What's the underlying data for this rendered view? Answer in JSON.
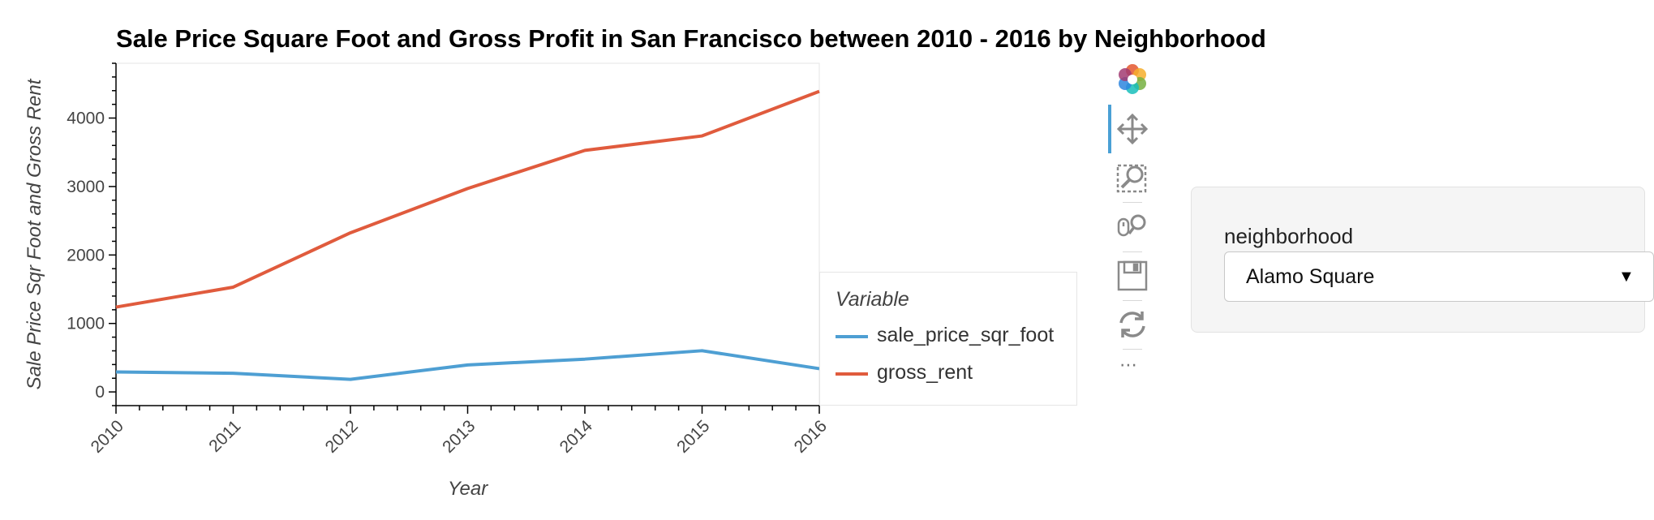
{
  "chart_data": {
    "type": "line",
    "title": "Sale Price Square Foot and Gross Profit in San Francisco between 2010 - 2016 by Neighborhood",
    "xlabel": "Year",
    "ylabel": "Sale Price Sqr Foot and Gross Rent",
    "x": [
      2010,
      2011,
      2012,
      2013,
      2014,
      2015,
      2016
    ],
    "xlim": [
      2010,
      2016
    ],
    "ylim": [
      -200,
      4800
    ],
    "yticks": [
      0,
      1000,
      2000,
      3000,
      4000
    ],
    "grid": false,
    "legend": {
      "title": "Variable",
      "placement": "right"
    },
    "series": [
      {
        "name": "sale_price_sqr_foot",
        "color": "#4e9fd3",
        "values": [
          291,
          272,
          184,
          394,
          479,
          602,
          340
        ]
      },
      {
        "name": "gross_rent",
        "color": "#e05b3d",
        "values": [
          1239,
          1530,
          2324,
          2971,
          3528,
          3739,
          4390
        ]
      }
    ]
  },
  "toolbar": {
    "icons": [
      "bokeh-logo-icon",
      "pan-icon",
      "box-zoom-icon",
      "wheel-zoom-icon",
      "save-icon",
      "reset-icon"
    ],
    "more": "⋯"
  },
  "widget": {
    "label": "neighborhood",
    "selected": "Alamo Square",
    "arrow": "▼"
  }
}
